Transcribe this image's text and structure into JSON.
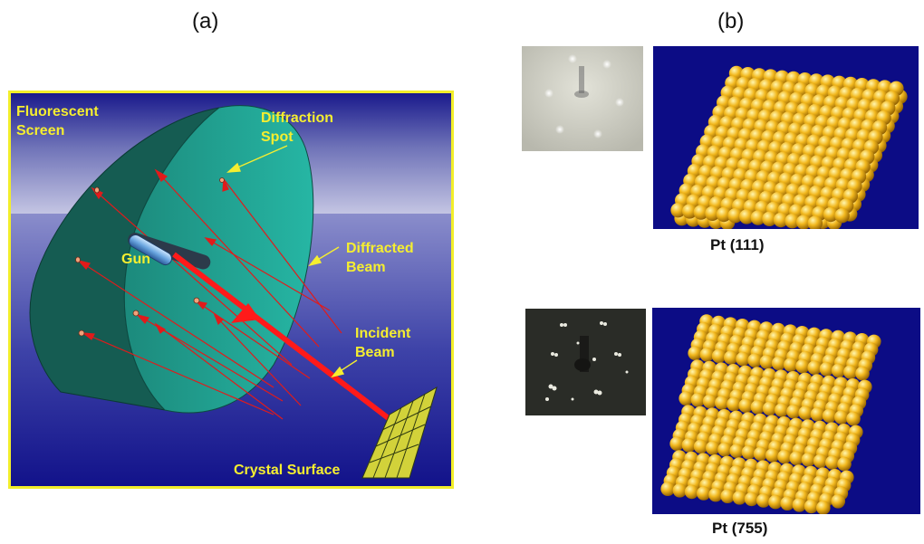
{
  "panels": {
    "a": {
      "label": "(a)",
      "annotations": {
        "fluorescent_screen": [
          "Fluorescent",
          "Screen"
        ],
        "diffraction_spot": [
          "Diffraction",
          "Spot"
        ],
        "diffracted_beam": [
          "Diffracted",
          "Beam"
        ],
        "gun": "Gun",
        "incident_beam": [
          "Incident",
          "Beam"
        ],
        "crystal_surface": "Crystal Surface"
      }
    },
    "b": {
      "label": "(b)",
      "surfaces": [
        {
          "caption": "Pt (111)"
        },
        {
          "caption": "Pt (755)"
        }
      ]
    }
  },
  "colors": {
    "frame": "#f2ee2a",
    "label_text": "#f5ee30",
    "beam": "#ff1a1a",
    "screen": "#1e8f80",
    "atom": "#f2b81e",
    "model_bg": "#0c0c85"
  }
}
